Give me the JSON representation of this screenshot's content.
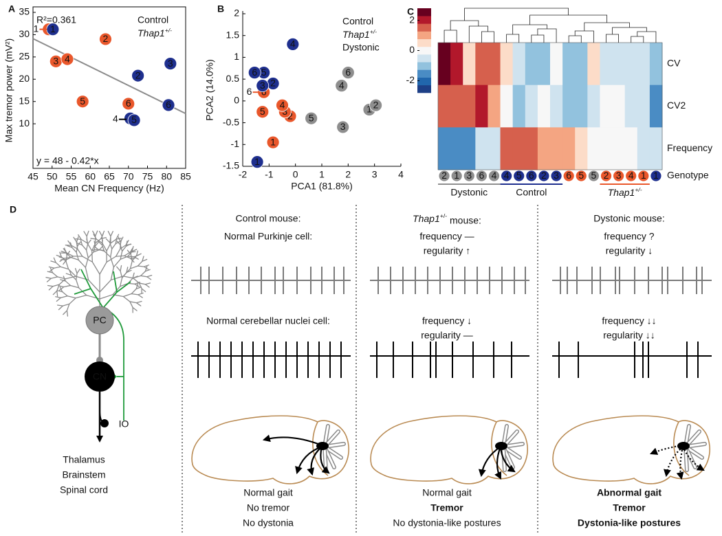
{
  "chart_data": [
    {
      "type": "scatter",
      "panel_label": "A",
      "xlabel": "Mean CN Frequency (Hz)",
      "ylabel": "Max tremor power (mV²)",
      "xlim": [
        45,
        85
      ],
      "xticks": [
        45,
        50,
        55,
        60,
        65,
        70,
        75,
        80,
        85
      ],
      "ylim": [
        0,
        35
      ],
      "yticks": [
        10,
        15,
        20,
        25,
        30,
        35
      ],
      "annotation": "R²=0.361",
      "fit": {
        "intercept": 48,
        "slope": -0.42,
        "label": "y = 48 - 0.42*x",
        "color": "#8c8c8c"
      },
      "callouts": [
        {
          "text": "1",
          "x": 45.8,
          "y": 31.2,
          "color": "#e9572b"
        },
        {
          "text": "4",
          "x": 66.6,
          "y": 11,
          "color": "#000000"
        }
      ],
      "series": [
        {
          "name": "Control",
          "color": "#1e2f8e",
          "labels": [
            "1",
            "2",
            "3",
            "4",
            "5",
            "6"
          ],
          "x": [
            50.2,
            72.5,
            81,
            70.5,
            71.5,
            80.5
          ],
          "values": [
            31.2,
            20.8,
            23.5,
            11.2,
            10.8,
            14.2
          ]
        },
        {
          "name": "Thap1+/-",
          "color": "#e9572b",
          "labels": [
            "1",
            "2",
            "3",
            "4",
            "5",
            "6"
          ],
          "x": [
            49.1,
            64,
            51,
            54,
            58,
            70
          ],
          "values": [
            31.2,
            29,
            24,
            24.5,
            15,
            14.5
          ]
        }
      ]
    },
    {
      "type": "scatter",
      "panel_label": "B",
      "xlabel": "PCA1 (81.8%)",
      "ylabel": "PCA2 (14.0%)",
      "xlim": [
        -2,
        4
      ],
      "xticks": [
        -2,
        -1,
        0,
        1,
        2,
        3,
        4
      ],
      "ylim": [
        -1.5,
        2
      ],
      "yticks": [
        -1.5,
        -1,
        -0.5,
        0,
        0.5,
        1,
        1.5,
        2
      ],
      "callouts": [
        {
          "text": "6",
          "x": -1.75,
          "y": 0.2,
          "color": "#e9572b"
        }
      ],
      "series": [
        {
          "name": "Control",
          "color": "#1e2f8e",
          "labels": [
            "1",
            "2",
            "3",
            "4",
            "5",
            "6"
          ],
          "x": [
            -1.45,
            -0.85,
            -1.25,
            -0.1,
            -1.2,
            -1.55
          ],
          "values": [
            -1.4,
            0.4,
            0.35,
            1.3,
            0.65,
            0.65
          ]
        },
        {
          "name": "Thap1+/-",
          "color": "#e9572b",
          "labels": [
            "1",
            "2",
            "3",
            "4",
            "5",
            "6"
          ],
          "x": [
            -0.85,
            -0.2,
            -0.4,
            -0.5,
            -1.25,
            -1.2
          ],
          "values": [
            -0.95,
            -0.35,
            -0.25,
            -0.1,
            -0.25,
            0.2
          ]
        },
        {
          "name": "Dystonic",
          "color": "#8e8e8e",
          "labels": [
            "1",
            "2",
            "3",
            "4",
            "5",
            "6"
          ],
          "x": [
            2.8,
            3.05,
            1.8,
            1.75,
            0.6,
            2.0
          ],
          "values": [
            -0.2,
            -0.1,
            -0.6,
            0.35,
            -0.4,
            0.65
          ]
        }
      ]
    },
    {
      "type": "heatmap",
      "panel_label": "C",
      "rows": [
        "CV",
        "CV2",
        "Frequency"
      ],
      "genotype_label": "Genotype",
      "columns": [
        "2",
        "1",
        "3",
        "6",
        "4",
        "4",
        "5",
        "6",
        "2",
        "3",
        "6",
        "5",
        "5",
        "2",
        "3",
        "4",
        "1",
        "1"
      ],
      "column_groups": [
        "Dystonic",
        "Dystonic",
        "Dystonic",
        "Dystonic",
        "Dystonic",
        "Control",
        "Control",
        "Control",
        "Control",
        "Control",
        "Thap1+/-",
        "Thap1+/-",
        "Dystonic",
        "Thap1+/-",
        "Thap1+/-",
        "Thap1+/-",
        "Thap1+/-",
        "Control"
      ],
      "groups": [
        {
          "name": "Dystonic",
          "color": "#8e8e8e"
        },
        {
          "name": "Control",
          "color": "#1e2f8e"
        },
        {
          "name": "Thap1+/-",
          "color": "#e9572b"
        }
      ],
      "values": [
        [
          2.7,
          2.2,
          0.4,
          1.6,
          1.6,
          0.3,
          -0.3,
          -0.9,
          -0.9,
          -0.2,
          -0.9,
          -0.9,
          0.3,
          -0.3,
          -0.3,
          -0.3,
          -0.3,
          -0.9
        ],
        [
          1.6,
          1.6,
          1.6,
          2.2,
          0.9,
          0.2,
          -0.9,
          -0.4,
          -0.1,
          -0.3,
          -0.9,
          -0.9,
          -0.3,
          0,
          0,
          -0.3,
          -0.3,
          -1.8
        ],
        [
          -1.8,
          -1.8,
          -1.8,
          -0.3,
          -0.3,
          1.6,
          1.6,
          1.6,
          1.0,
          1.0,
          1.0,
          0.4,
          0,
          0,
          -0.1,
          -0.1,
          -0.3,
          -0.3
        ]
      ],
      "clim": [
        -2.8,
        2.8
      ],
      "cticks": [
        2,
        0,
        -2
      ],
      "colorscale": [
        "#1d3f86",
        "#2166ac",
        "#4a8cc4",
        "#92c2de",
        "#cfe3ef",
        "#f7f7f7",
        "#fcdcc8",
        "#f4a582",
        "#d6604d",
        "#b2182b",
        "#67001f"
      ]
    }
  ],
  "diagram": {
    "panel_label": "D",
    "neuron_labels": {
      "pc": "PC",
      "cn": "CN",
      "io": "IO"
    },
    "targets": [
      "Thalamus",
      "Brainstem",
      "Spinal cord"
    ],
    "columns": [
      {
        "title": "Control mouse:",
        "pc_text": [
          "Normal Purkinje cell:"
        ],
        "cn_text": [
          "Normal cerebellar nuclei cell:"
        ],
        "outcomes": [
          {
            "text": "Normal gait",
            "bold": false
          },
          {
            "text": "No tremor",
            "bold": false
          },
          {
            "text": "No dystonia",
            "bold": false
          }
        ]
      },
      {
        "title": "Thap1+/- mouse:",
        "pc_text": [
          "frequency —",
          "regularity ↑"
        ],
        "cn_text": [
          "frequency ↓",
          "regularity —"
        ],
        "outcomes": [
          {
            "text": "Normal gait",
            "bold": false
          },
          {
            "text": "Tremor",
            "bold": true
          },
          {
            "text": "No dystonia-like postures",
            "bold": false
          }
        ]
      },
      {
        "title": "Dystonic mouse:",
        "pc_text": [
          "frequency ?",
          "regularity ↓"
        ],
        "cn_text": [
          "frequency ↓↓",
          "regularity ↓↓"
        ],
        "outcomes": [
          {
            "text": "Abnormal gait",
            "bold": true
          },
          {
            "text": "Tremor",
            "bold": true
          },
          {
            "text": "Dystonia-like postures",
            "bold": true
          }
        ]
      }
    ]
  }
}
